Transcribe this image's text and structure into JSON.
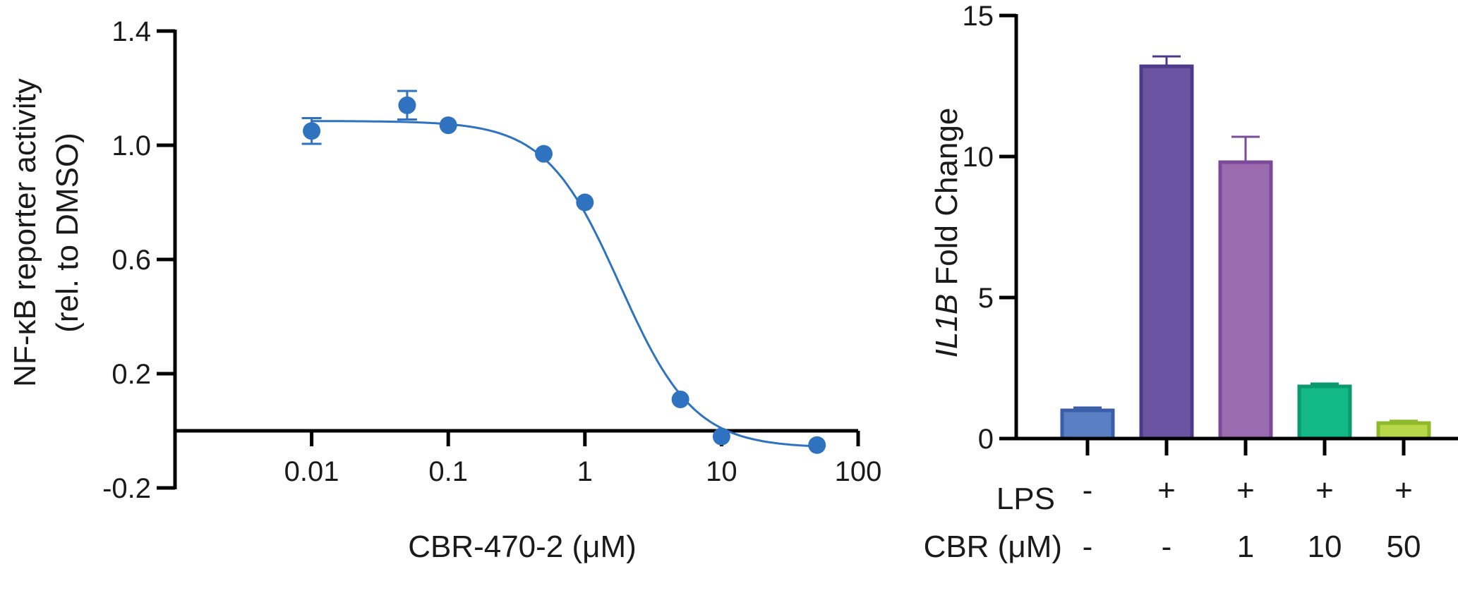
{
  "chart_data": [
    {
      "type": "scatter",
      "xscale": "log",
      "xlabel": "CBR-470-2 (μM)",
      "ylabel_line1": "NF-κB reporter activity",
      "ylabel_line2": "(rel. to DMSO)",
      "xlim": [
        0.001,
        100
      ],
      "ylim": [
        -0.2,
        1.4
      ],
      "xticks": [
        {
          "value": 0.01,
          "label": "0.01"
        },
        {
          "value": 0.1,
          "label": "0.1"
        },
        {
          "value": 1,
          "label": "1"
        },
        {
          "value": 10,
          "label": "10"
        },
        {
          "value": 100,
          "label": "100"
        }
      ],
      "yticks": [
        {
          "value": -0.2,
          "label": "-0.2"
        },
        {
          "value": 0.2,
          "label": "0.2"
        },
        {
          "value": 0.6,
          "label": "0.6"
        },
        {
          "value": 1.0,
          "label": "1.0"
        },
        {
          "value": 1.4,
          "label": "1.4"
        }
      ],
      "color": "#2f73c0",
      "points": [
        {
          "x": 0.01,
          "y": 1.05,
          "err": 0.045
        },
        {
          "x": 0.05,
          "y": 1.14,
          "err": 0.05
        },
        {
          "x": 0.1,
          "y": 1.07,
          "err": 0.0
        },
        {
          "x": 0.5,
          "y": 0.97,
          "err": 0.0
        },
        {
          "x": 1,
          "y": 0.8,
          "err": 0.0
        },
        {
          "x": 5,
          "y": 0.11,
          "err": 0.0
        },
        {
          "x": 10,
          "y": -0.02,
          "err": 0.0
        },
        {
          "x": 50,
          "y": -0.05,
          "err": 0.0
        }
      ],
      "fit": {
        "top": 1.085,
        "bottom": -0.06,
        "ic50": 1.8,
        "hill": 1.6
      }
    },
    {
      "type": "bar",
      "ylabel_italic": "IL1B",
      "ylabel_rest": " Fold Change",
      "ylim": [
        0,
        15
      ],
      "yticks": [
        {
          "value": 0,
          "label": "0"
        },
        {
          "value": 5,
          "label": "5"
        },
        {
          "value": 10,
          "label": "10"
        },
        {
          "value": 15,
          "label": "15"
        }
      ],
      "bars": [
        {
          "value": 1.0,
          "err": 0.1,
          "lps": "-",
          "cbr": "-",
          "fill": "#5b7fc4",
          "edge": "#3a5ea8"
        },
        {
          "value": 13.2,
          "err": 0.35,
          "lps": "+",
          "cbr": "-",
          "fill": "#6a54a2",
          "edge": "#4c3a8a"
        },
        {
          "value": 9.8,
          "err": 0.9,
          "lps": "+",
          "cbr": "1",
          "fill": "#9b6bb0",
          "edge": "#7b4a98"
        },
        {
          "value": 1.85,
          "err": 0.1,
          "lps": "+",
          "cbr": "10",
          "fill": "#12b886",
          "edge": "#0a9a6c"
        },
        {
          "value": 0.55,
          "err": 0.08,
          "lps": "+",
          "cbr": "50",
          "fill": "#b8d84a",
          "edge": "#8db92a"
        }
      ],
      "row_labels": {
        "lps": "LPS",
        "cbr": "CBR (μM)"
      }
    }
  ]
}
